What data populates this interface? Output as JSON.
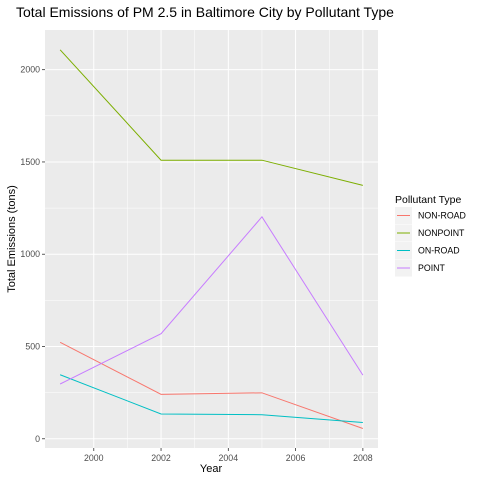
{
  "chart_data": {
    "type": "line",
    "title": "Total Emissions of PM 2.5 in Baltimore City by Pollutant Type",
    "xlabel": "Year",
    "ylabel": "Total Emissions (tons)",
    "x": [
      1999,
      2002,
      2005,
      2008
    ],
    "x_ticks": [
      2000,
      2002,
      2004,
      2006,
      2008
    ],
    "x_tick_labels": [
      "2000",
      "2002",
      "2004",
      "2006",
      "2008"
    ],
    "xlim": [
      1998.55,
      2008.45
    ],
    "y_ticks": [
      0,
      500,
      1000,
      1500,
      2000
    ],
    "y_tick_labels": [
      "0",
      "500",
      "1000",
      "1500",
      "2000"
    ],
    "ylim": [
      -50,
      2215
    ],
    "grid": true,
    "legend": {
      "title": "Pollutant Type",
      "placement": "right"
    },
    "series": [
      {
        "name": "NON-ROAD",
        "color": "#F8766D",
        "values": [
          522.94,
          240.85,
          248.93,
          55.82
        ]
      },
      {
        "name": "NONPOINT",
        "color": "#7CAE00",
        "values": [
          2107.63,
          1509.5,
          1509.5,
          1373.21
        ]
      },
      {
        "name": "ON-ROAD",
        "color": "#00BFC4",
        "values": [
          346.82,
          134.31,
          130.43,
          88.28
        ]
      },
      {
        "name": "POINT",
        "color": "#C77CFF",
        "values": [
          296.8,
          569.26,
          1202.49,
          344.98
        ]
      }
    ]
  }
}
